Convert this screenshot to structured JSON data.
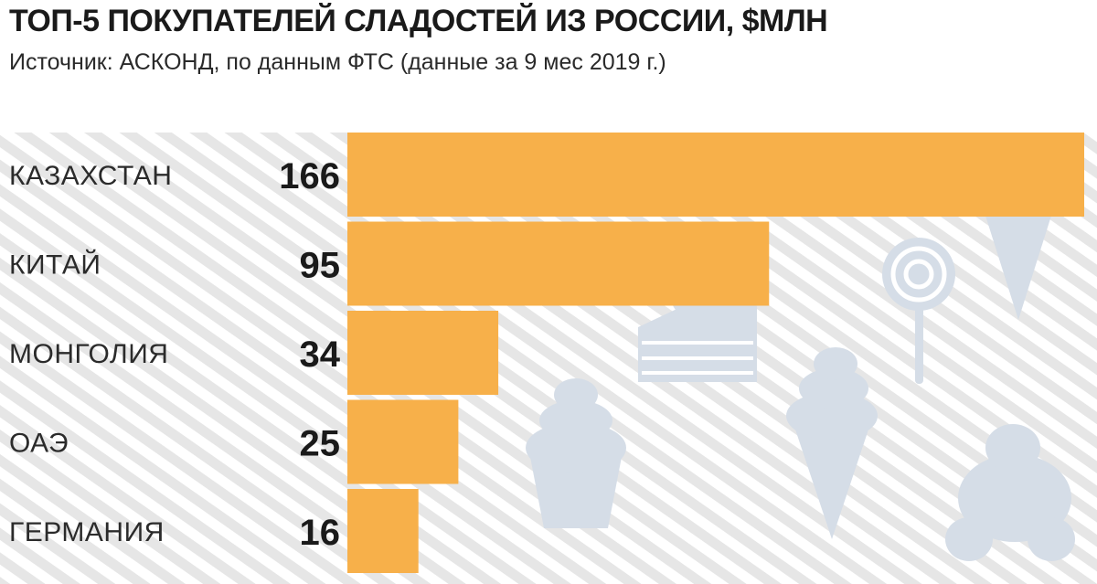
{
  "chart_data": {
    "type": "bar",
    "orientation": "horizontal",
    "title": "ТОП-5 ПОКУПАТЕЛЕЙ СЛАДОСТЕЙ ИЗ РОССИИ, $МЛН",
    "subtitle": "Источник: АСКОНД, по данным ФТС (данные за 9 мес 2019 г.)",
    "categories": [
      "КАЗАХСТАН",
      "КИТАЙ",
      "МОНГОЛИЯ",
      "ОАЭ",
      "ГЕРМАНИЯ"
    ],
    "values": [
      166,
      95,
      34,
      25,
      16
    ],
    "xlim": [
      0,
      166
    ],
    "grid": false,
    "colors": {
      "bar": "#f7b04a",
      "stripes": "#e4e4e4",
      "illustrations": "#d5dde7"
    }
  },
  "illustrations": [
    "ice-cream-scoops",
    "cake-slice-with-cherry",
    "lollipop",
    "cupcake",
    "soft-serve-cone",
    "croissant"
  ]
}
